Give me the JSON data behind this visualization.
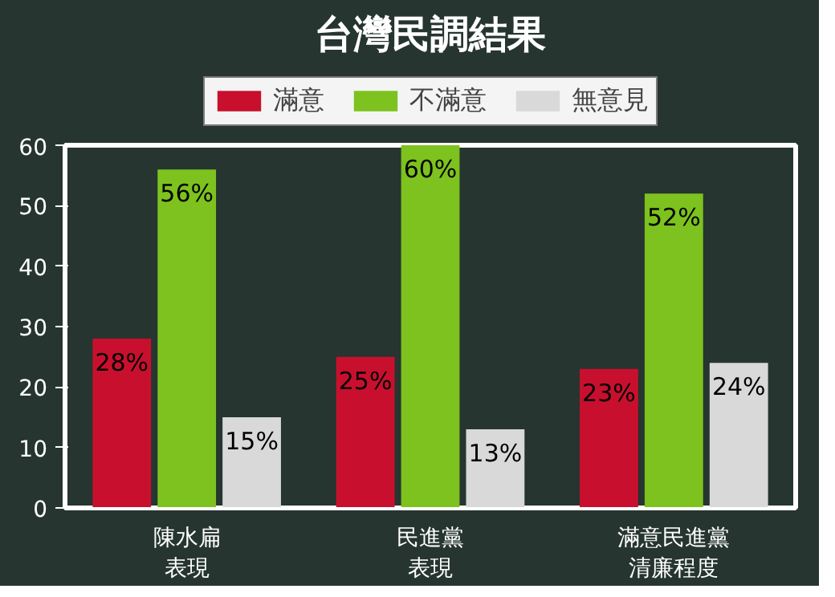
{
  "chart_data": {
    "type": "bar",
    "title": "台灣民調結果",
    "categories": [
      "陳水扁表現",
      "民進黨表現",
      "滿意民進黨清廉程度"
    ],
    "series": [
      {
        "name": "滿意",
        "color": "#c8102e",
        "values": [
          28,
          25,
          23
        ],
        "value_labels": [
          "28%",
          "25%",
          "23%"
        ]
      },
      {
        "name": "不滿意",
        "color": "#7dc21e",
        "values": [
          56,
          60,
          52
        ],
        "value_labels": [
          "56%",
          "60%",
          "52%"
        ]
      },
      {
        "name": "無意見",
        "color": "#d9d9d9",
        "values": [
          15,
          13,
          24
        ],
        "value_labels": [
          "15%",
          "13%",
          "24%"
        ]
      }
    ],
    "ylim": [
      0,
      60
    ],
    "yticks": [
      0,
      10,
      20,
      30,
      40,
      50,
      60
    ],
    "grid": false,
    "legend": "top"
  }
}
